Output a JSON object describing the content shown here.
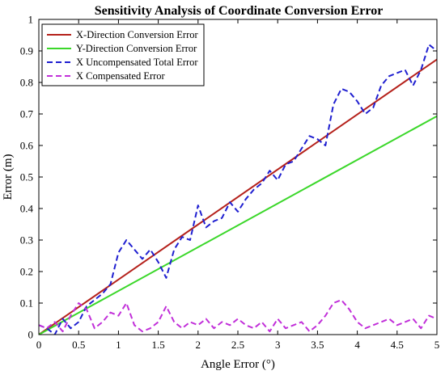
{
  "chart_data": {
    "type": "line",
    "title": "Sensitivity Analysis of Coordinate Conversion Error",
    "xlabel": "Angle Error (°)",
    "ylabel": "Error (m)",
    "xlim": [
      0,
      5
    ],
    "ylim": [
      0,
      1
    ],
    "xticks": [
      "0",
      "0.5",
      "1",
      "1.5",
      "2",
      "2.5",
      "3",
      "3.5",
      "4",
      "4.5",
      "5"
    ],
    "yticks": [
      "0",
      "0.1",
      "0.2",
      "0.3",
      "0.4",
      "0.5",
      "0.6",
      "0.7",
      "0.8",
      "0.9",
      "1"
    ],
    "grid": false,
    "legend_position": "top-left",
    "series": [
      {
        "name": "X-Direction Conversion Error",
        "color": "#b5211b",
        "style": "solid",
        "x": [
          0,
          5
        ],
        "y": [
          0,
          0.873
        ]
      },
      {
        "name": "Y-Direction Conversion Error",
        "color": "#3bd72a",
        "style": "solid",
        "x": [
          0,
          5
        ],
        "y": [
          0,
          0.693
        ]
      },
      {
        "name": "X Uncompensated Total Error",
        "color": "#1f1fd0",
        "style": "dashed",
        "x": [
          0,
          0.1,
          0.2,
          0.3,
          0.4,
          0.5,
          0.6,
          0.7,
          0.8,
          0.9,
          1.0,
          1.1,
          1.2,
          1.3,
          1.4,
          1.5,
          1.6,
          1.7,
          1.8,
          1.9,
          2.0,
          2.1,
          2.2,
          2.3,
          2.4,
          2.5,
          2.6,
          2.7,
          2.8,
          2.9,
          3.0,
          3.1,
          3.2,
          3.3,
          3.4,
          3.5,
          3.6,
          3.7,
          3.8,
          3.9,
          4.0,
          4.1,
          4.2,
          4.3,
          4.4,
          4.5,
          4.6,
          4.7,
          4.8,
          4.9,
          5.0
        ],
        "y": [
          0.03,
          0.02,
          0.0,
          0.05,
          0.02,
          0.04,
          0.09,
          0.11,
          0.13,
          0.16,
          0.26,
          0.3,
          0.27,
          0.24,
          0.27,
          0.23,
          0.18,
          0.27,
          0.31,
          0.3,
          0.41,
          0.34,
          0.36,
          0.37,
          0.42,
          0.39,
          0.43,
          0.46,
          0.48,
          0.52,
          0.49,
          0.54,
          0.55,
          0.59,
          0.63,
          0.62,
          0.6,
          0.73,
          0.78,
          0.77,
          0.74,
          0.7,
          0.72,
          0.79,
          0.82,
          0.83,
          0.84,
          0.79,
          0.84,
          0.92,
          0.9
        ]
      },
      {
        "name": "X Compensated Error",
        "color": "#c12fd9",
        "style": "dashed",
        "x": [
          0,
          0.1,
          0.2,
          0.3,
          0.4,
          0.5,
          0.6,
          0.7,
          0.8,
          0.9,
          1.0,
          1.1,
          1.2,
          1.3,
          1.4,
          1.5,
          1.6,
          1.7,
          1.8,
          1.9,
          2.0,
          2.1,
          2.2,
          2.3,
          2.4,
          2.5,
          2.6,
          2.7,
          2.8,
          2.9,
          3.0,
          3.1,
          3.2,
          3.3,
          3.4,
          3.5,
          3.6,
          3.7,
          3.8,
          3.9,
          4.0,
          4.1,
          4.2,
          4.3,
          4.4,
          4.5,
          4.6,
          4.7,
          4.8,
          4.9,
          5.0
        ],
        "y": [
          0.03,
          0.02,
          0.04,
          0.01,
          0.06,
          0.1,
          0.08,
          0.02,
          0.04,
          0.07,
          0.06,
          0.1,
          0.03,
          0.01,
          0.02,
          0.04,
          0.09,
          0.04,
          0.02,
          0.04,
          0.03,
          0.05,
          0.02,
          0.04,
          0.03,
          0.05,
          0.03,
          0.02,
          0.04,
          0.01,
          0.05,
          0.02,
          0.03,
          0.04,
          0.01,
          0.03,
          0.06,
          0.1,
          0.11,
          0.08,
          0.04,
          0.02,
          0.03,
          0.04,
          0.05,
          0.03,
          0.04,
          0.05,
          0.02,
          0.06,
          0.05
        ]
      }
    ]
  }
}
